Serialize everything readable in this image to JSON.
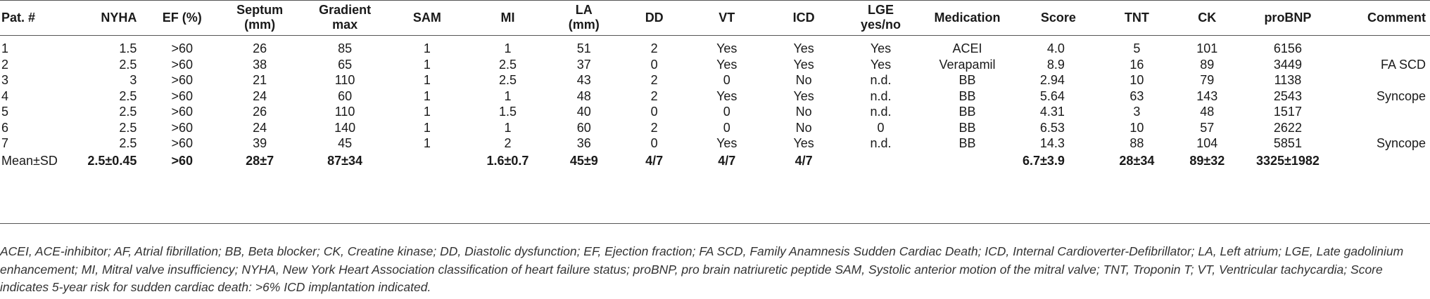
{
  "table": {
    "headers": [
      {
        "id": "pat",
        "label": "Pat. #"
      },
      {
        "id": "nyha",
        "label": "NYHA"
      },
      {
        "id": "ef",
        "label": "EF (%)"
      },
      {
        "id": "septum",
        "label": "Septum (mm)"
      },
      {
        "id": "gradient",
        "label": "Gradient max"
      },
      {
        "id": "sam",
        "label": "SAM"
      },
      {
        "id": "mi",
        "label": "MI"
      },
      {
        "id": "la",
        "label": "LA (mm)"
      },
      {
        "id": "dd",
        "label": "DD"
      },
      {
        "id": "vt",
        "label": "VT"
      },
      {
        "id": "icd",
        "label": "ICD"
      },
      {
        "id": "lge",
        "label": "LGE yes/no"
      },
      {
        "id": "medication",
        "label": "Medication"
      },
      {
        "id": "score",
        "label": "Score"
      },
      {
        "id": "tnt",
        "label": "TNT"
      },
      {
        "id": "ck",
        "label": "CK"
      },
      {
        "id": "probnp",
        "label": "proBNP"
      },
      {
        "id": "comment",
        "label": "Comment"
      }
    ],
    "header_lines": {
      "septum": [
        "Septum",
        "(mm)"
      ],
      "gradient": [
        "Gradient",
        "max"
      ],
      "la": [
        "LA",
        "(mm)"
      ],
      "lge": [
        "LGE",
        "yes/no"
      ]
    },
    "rows": [
      [
        "1",
        "1.5",
        ">60",
        "26",
        "85",
        "1",
        "1",
        "51",
        "2",
        "Yes",
        "Yes",
        "Yes",
        "ACEI",
        "4.0",
        "5",
        "101",
        "6156",
        ""
      ],
      [
        "2",
        "2.5",
        ">60",
        "38",
        "65",
        "1",
        "2.5",
        "37",
        "0",
        "Yes",
        "Yes",
        "Yes",
        "Verapamil",
        "8.9",
        "16",
        "89",
        "3449",
        "FA SCD"
      ],
      [
        "3",
        "3",
        ">60",
        "21",
        "110",
        "1",
        "2.5",
        "43",
        "2",
        "0",
        "No",
        "n.d.",
        "BB",
        "2.94",
        "10",
        "79",
        "1138",
        ""
      ],
      [
        "4",
        "2.5",
        ">60",
        "24",
        "60",
        "1",
        "1",
        "48",
        "2",
        "Yes",
        "Yes",
        "n.d.",
        "BB",
        "5.64",
        "63",
        "143",
        "2543",
        "Syncope"
      ],
      [
        "5",
        "2.5",
        ">60",
        "26",
        "110",
        "1",
        "1.5",
        "40",
        "0",
        "0",
        "No",
        "n.d.",
        "BB",
        "4.31",
        "3",
        "48",
        "1517",
        ""
      ],
      [
        "6",
        "2.5",
        ">60",
        "24",
        "140",
        "1",
        "1",
        "60",
        "2",
        "0",
        "No",
        "0",
        "BB",
        "6.53",
        "10",
        "57",
        "2622",
        ""
      ],
      [
        "7",
        "2.5",
        ">60",
        "39",
        "45",
        "1",
        "2",
        "36",
        "0",
        "Yes",
        "Yes",
        "n.d.",
        "BB",
        "14.3",
        "88",
        "104",
        "5851",
        "Syncope"
      ]
    ],
    "mean_row": [
      "Mean±SD",
      "2.5±0.45",
      ">60",
      "28±7",
      "87±34",
      "",
      "1.6±0.7",
      "45±9",
      "4/7",
      "4/7",
      "4/7",
      "",
      "",
      "6.7±3.9",
      "28±34",
      "89±32",
      "3325±1982",
      ""
    ]
  },
  "footnote": {
    "text": "ACEI, ACE-inhibitor; AF, Atrial fibrillation; BB, Beta blocker; CK, Creatine kinase; DD, Diastolic dysfunction; EF, Ejection fraction; FA SCD, Family Anamnesis Sudden Cardiac Death; ICD, Internal Cardioverter-Defibrillator; LA, Left atrium; LGE, Late gadolinium enhancement; MI, Mitral valve insufficiency; NYHA, New York Heart Association classification of heart failure status; proBNP, pro brain natriuretic peptide SAM, Systolic anterior motion of the mitral valve; TNT, Troponin T; VT, Ventricular tachycardia; Score indicates 5-year risk for sudden cardiac death: >6% ICD implantation indicated."
  }
}
